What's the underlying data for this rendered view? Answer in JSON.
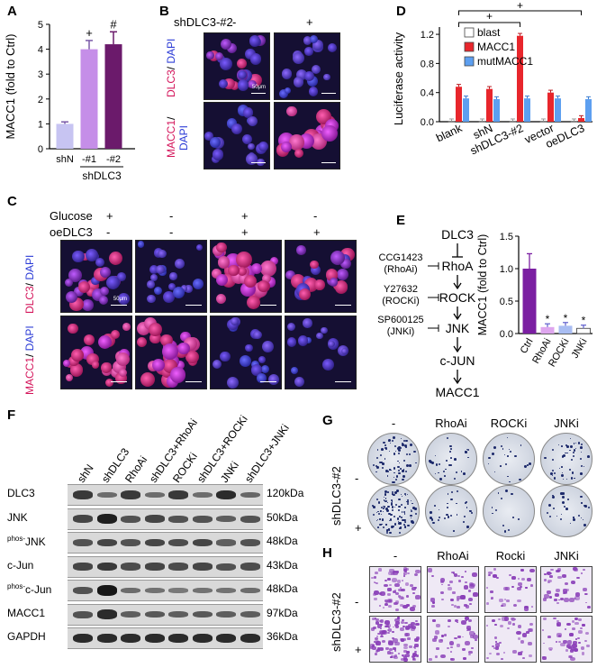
{
  "panels": {
    "A": "A",
    "B": "B",
    "C": "C",
    "D": "D",
    "E": "E",
    "F": "F",
    "G": "G",
    "H": "H"
  },
  "panelA": {
    "ylabel": "MACC1 (fold to Ctrl)",
    "yticks": [
      "0",
      "1",
      "2",
      "3",
      "4",
      "5"
    ],
    "bars": [
      {
        "label": "shN",
        "value": 1.0,
        "err": 0.08,
        "mark": "",
        "color": "#c7c4f2"
      },
      {
        "label": "-#1",
        "value": 4.0,
        "err": 0.35,
        "mark": "+",
        "color": "#c58ee8"
      },
      {
        "label": "-#2",
        "value": 4.2,
        "err": 0.5,
        "mark": "#",
        "color": "#6b1a6b"
      }
    ],
    "group_label": "shDLC3"
  },
  "panelB": {
    "header": "shDLC3-#2",
    "minus": "-",
    "plus": "+",
    "row1_a": "DLC3",
    "row1_b": "DAPI",
    "row2_a": "MACC1",
    "row2_b": "DAPI",
    "scale": "50μm"
  },
  "panelC": {
    "row_glucose": "Glucose",
    "row_oe": "oeDLC3",
    "glucose_signs": [
      "+",
      "-",
      "+",
      "-"
    ],
    "oe_signs": [
      "-",
      "-",
      "+",
      "+"
    ],
    "row1_a": "DLC3",
    "row1_b": "DAPI",
    "row2_a": "MACC1",
    "row2_b": "DAPI",
    "scale": "50μm"
  },
  "panelD": {
    "ylabel": "Luciferase activity",
    "yticks": [
      "0.0",
      "0.4",
      "0.8",
      "1.2"
    ],
    "legend": [
      {
        "name": "blast",
        "color": "#ffffff"
      },
      {
        "name": "MACC1",
        "color": "#e8262c"
      },
      {
        "name": "mutMACC1",
        "color": "#5d9ff0"
      }
    ],
    "categories": [
      "blank",
      "shN",
      "shDLC3-#2",
      "vector",
      "oeDLC3"
    ],
    "series": [
      {
        "name": "blast",
        "values": [
          0.005,
          0.005,
          0.005,
          0.005,
          0.005
        ]
      },
      {
        "name": "MACC1",
        "values": [
          0.48,
          0.45,
          1.18,
          0.4,
          0.05
        ]
      },
      {
        "name": "mutMACC1",
        "values": [
          0.32,
          0.31,
          0.32,
          0.32,
          0.31
        ]
      }
    ],
    "sig": [
      "+",
      "+"
    ]
  },
  "panelE": {
    "pathway": [
      "DLC3",
      "RhoA",
      "ROCK",
      "JNK",
      "c-JUN",
      "MACC1"
    ],
    "inhibitors": [
      {
        "name": "CCG1423",
        "abbr": "(RhoAi)"
      },
      {
        "name": "Y27632",
        "abbr": "(ROCKi)"
      },
      {
        "name": "SP600125",
        "abbr": "(JNKi)"
      }
    ],
    "chart": {
      "ylabel": "MACC1 (fold to Ctrl)",
      "yticks": [
        "0.0",
        "0.5",
        "1.0",
        "1.5"
      ],
      "bars": [
        {
          "label": "Ctrl",
          "value": 1.0,
          "err": 0.23,
          "mark": "",
          "color": "#7b1fa2"
        },
        {
          "label": "RhoAi",
          "value": 0.1,
          "err": 0.05,
          "mark": "*",
          "color": "#dea6ee"
        },
        {
          "label": "ROCKi",
          "value": 0.12,
          "err": 0.05,
          "mark": "*",
          "color": "#a9bdf2"
        },
        {
          "label": "JNKi",
          "value": 0.08,
          "err": 0.05,
          "mark": "*",
          "color": "#ffffff"
        }
      ]
    }
  },
  "panelF": {
    "lanes": [
      "shN",
      "shDLC3",
      "RhoAi",
      "shDLC3+RhoAi",
      "ROCKi",
      "shDLC3+ROCKi",
      "JNKi",
      "shDLC3+JNKi"
    ],
    "proteins": [
      {
        "pre": "",
        "name": "DLC3",
        "kda": "120kDa",
        "levels": [
          0.7,
          0.3,
          0.7,
          0.3,
          0.7,
          0.3,
          0.8,
          0.35
        ]
      },
      {
        "pre": "",
        "name": "JNK",
        "kda": "50kDa",
        "levels": [
          0.6,
          0.9,
          0.5,
          0.6,
          0.5,
          0.5,
          0.4,
          0.5
        ]
      },
      {
        "pre": "phos-",
        "name": "JNK",
        "kda": "48kDa",
        "levels": [
          0.5,
          0.6,
          0.5,
          0.6,
          0.55,
          0.6,
          0.4,
          0.5
        ]
      },
      {
        "pre": "",
        "name": "c-Jun",
        "kda": "43kDa",
        "levels": [
          0.6,
          0.7,
          0.55,
          0.6,
          0.55,
          0.6,
          0.5,
          0.55
        ]
      },
      {
        "pre": "phos-",
        "name": "c-Jun",
        "kda": "48kDa",
        "levels": [
          0.5,
          0.95,
          0.3,
          0.25,
          0.2,
          0.25,
          0.25,
          0.3
        ]
      },
      {
        "pre": "",
        "name": "MACC1",
        "kda": "97kDa",
        "levels": [
          0.5,
          0.8,
          0.4,
          0.45,
          0.4,
          0.45,
          0.4,
          0.4
        ]
      },
      {
        "pre": "",
        "name": "GAPDH",
        "kda": "36kDa",
        "levels": [
          0.8,
          0.8,
          0.8,
          0.8,
          0.8,
          0.8,
          0.8,
          0.8
        ]
      }
    ]
  },
  "panelG": {
    "cols": [
      "-",
      "RhoAi",
      "ROCKi",
      "JNKi"
    ],
    "side": "shDLC3-#2",
    "minus": "-",
    "plus": "+"
  },
  "panelH": {
    "cols": [
      "-",
      "RhoAi",
      "Rocki",
      "JNKi"
    ],
    "side": "shDLC3-#2",
    "minus": "-",
    "plus": "+"
  }
}
